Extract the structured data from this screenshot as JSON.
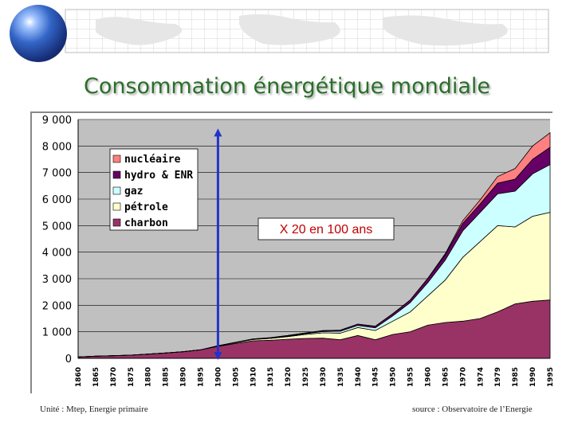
{
  "slide": {
    "title": "Consommation énergétique mondiale",
    "unit_note": "Unité : Mtep, Energie primaire",
    "source_note": "source : Observatoire de l’Energie"
  },
  "chart_data": {
    "type": "area",
    "stacked": true,
    "title": "",
    "xlabel": "",
    "ylabel": "",
    "ylim": [
      0,
      9000
    ],
    "yticks": [
      0,
      1000,
      2000,
      3000,
      4000,
      5000,
      6000,
      7000,
      8000,
      9000
    ],
    "ytick_labels": [
      "0",
      "1 000",
      "2 000",
      "3 000",
      "4 000",
      "5 000",
      "6 000",
      "7 000",
      "8 000",
      "9 000"
    ],
    "categories": [
      "1860",
      "1865",
      "1870",
      "1875",
      "1880",
      "1885",
      "1890",
      "1895",
      "1900",
      "1905",
      "1910",
      "1915",
      "1920",
      "1925",
      "1930",
      "1935",
      "1940",
      "1945",
      "1950",
      "1955",
      "1960",
      "1965",
      "1970",
      "1974",
      "1979",
      "1985",
      "1990",
      "1995"
    ],
    "legend_position": "top-left",
    "series": [
      {
        "name": "charbon",
        "color": "#993366",
        "values": [
          50,
          80,
          100,
          120,
          160,
          200,
          250,
          320,
          450,
          560,
          660,
          680,
          720,
          750,
          760,
          700,
          860,
          700,
          900,
          1000,
          1250,
          1350,
          1400,
          1500,
          1750,
          2050,
          2150,
          2200
        ]
      },
      {
        "name": "pétrole",
        "color": "#ffffcc",
        "values": [
          0,
          0,
          0,
          0,
          0,
          0,
          0,
          0,
          20,
          30,
          50,
          70,
          100,
          150,
          200,
          250,
          300,
          350,
          500,
          750,
          1100,
          1600,
          2400,
          2900,
          3250,
          2900,
          3200,
          3300
        ]
      },
      {
        "name": "gaz",
        "color": "#ccffff",
        "values": [
          0,
          0,
          0,
          0,
          0,
          0,
          0,
          0,
          0,
          5,
          10,
          15,
          20,
          30,
          50,
          70,
          80,
          100,
          200,
          350,
          500,
          750,
          1000,
          1100,
          1200,
          1350,
          1600,
          1800
        ]
      },
      {
        "name": "hydro & ENR",
        "color": "#660066",
        "values": [
          0,
          0,
          0,
          0,
          0,
          0,
          0,
          0,
          5,
          8,
          12,
          15,
          20,
          25,
          35,
          40,
          50,
          60,
          80,
          100,
          150,
          200,
          280,
          320,
          400,
          450,
          550,
          650
        ]
      },
      {
        "name": "nucléaire",
        "color": "#ff8080",
        "values": [
          0,
          0,
          0,
          0,
          0,
          0,
          0,
          0,
          0,
          0,
          0,
          0,
          0,
          0,
          0,
          0,
          0,
          0,
          0,
          0,
          10,
          40,
          100,
          150,
          250,
          400,
          500,
          550
        ]
      }
    ],
    "legend_order": [
      "nucléaire",
      "hydro & ENR",
      "gaz",
      "pétrole",
      "charbon"
    ],
    "annotation": {
      "text": "X 20 en 100 ans",
      "from_year": "1900",
      "from_value": 0,
      "to_value": 8600
    },
    "arrow_color": "#2233cc",
    "plot_bg": "#c0c0c0"
  }
}
